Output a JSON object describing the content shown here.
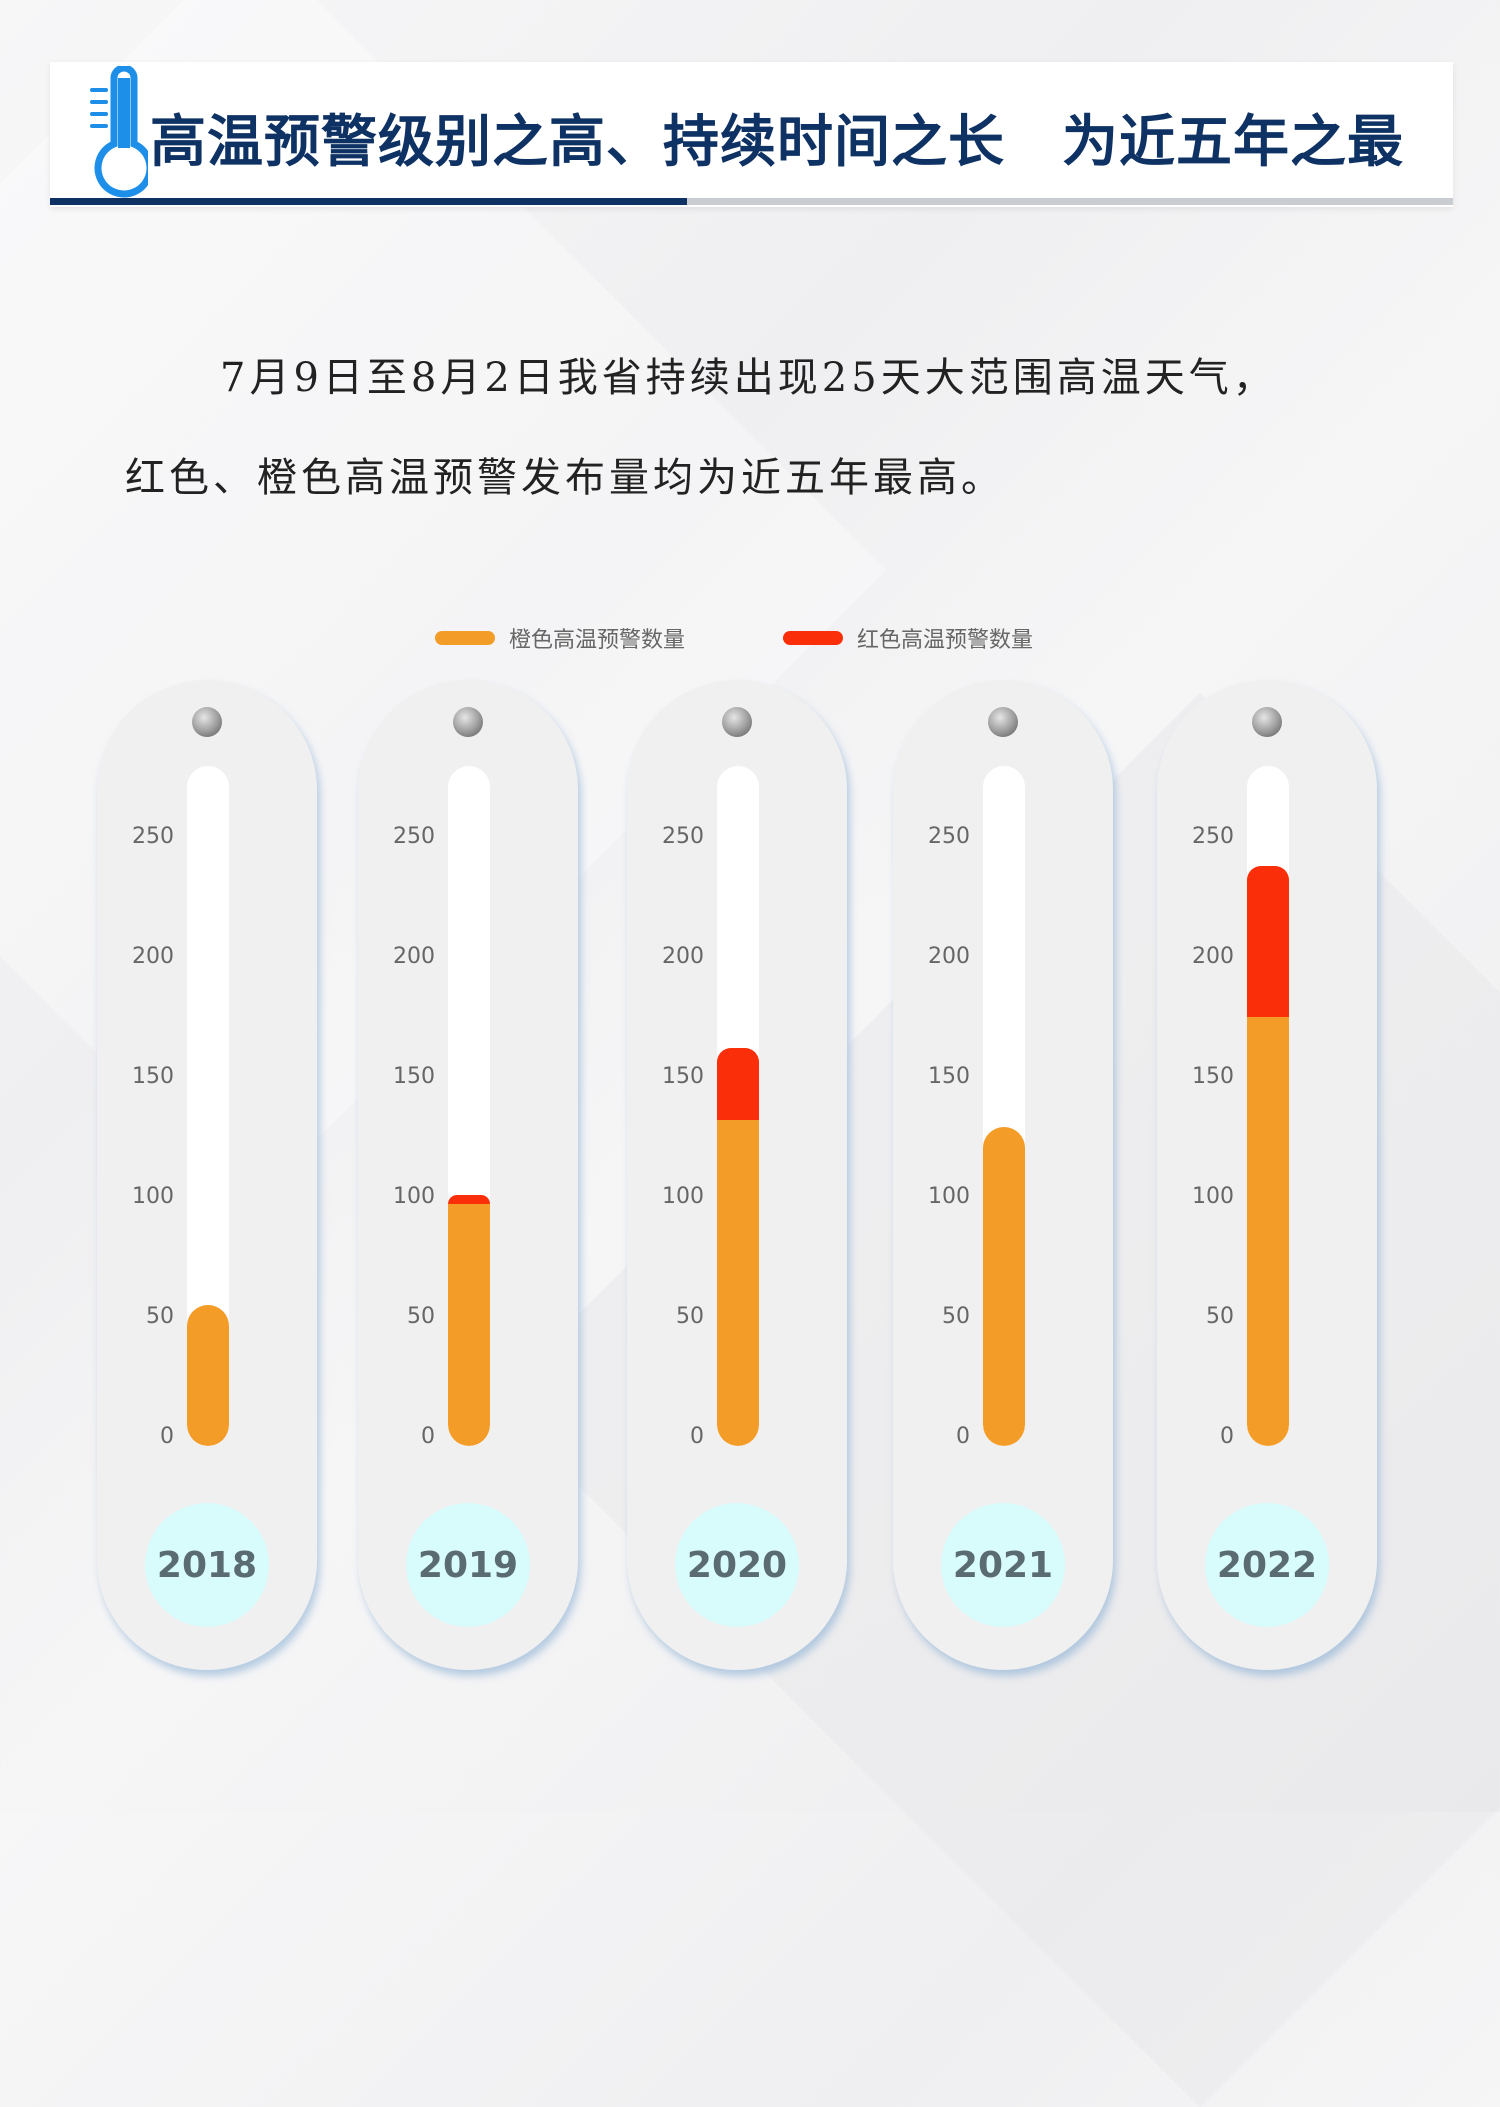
{
  "header": {
    "title": "高温预警级别之高、持续时间之长　为近五年之最",
    "icon": "thermometer-icon"
  },
  "intro": {
    "line1": "7月9日至8月2日我省持续出现25天大范围高温天气，",
    "line2": "红色、橙色高温预警发布量均为近五年最高。"
  },
  "colors": {
    "orange": "#f39c28",
    "red": "#fa2f0a",
    "title": "#0f3264",
    "year_bg": "#d8fbfb"
  },
  "chart_data": {
    "type": "bar",
    "stacked": true,
    "categories": [
      "2018",
      "2019",
      "2020",
      "2021",
      "2022"
    ],
    "series": [
      {
        "name": "橙色高温预警数量",
        "color": "#f39c28",
        "values": [
          55,
          97,
          132,
          129,
          175
        ]
      },
      {
        "name": "红色高温预警数量",
        "color": "#fa2f0a",
        "values": [
          0,
          4,
          30,
          0,
          63
        ]
      }
    ],
    "yticks": [
      0,
      50,
      100,
      150,
      200,
      250
    ],
    "ylim": [
      0,
      250
    ],
    "legend_position": "top"
  }
}
